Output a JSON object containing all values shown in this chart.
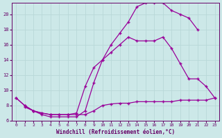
{
  "background_color": "#cce8e8",
  "grid_color": "#aacccc",
  "line_color": "#990099",
  "marker": "+",
  "xlabel": "Windchill (Refroidissement éolien,°C)",
  "xlim": [
    -0.5,
    23.5
  ],
  "ylim": [
    6,
    21.5
  ],
  "yticks": [
    6,
    8,
    10,
    12,
    14,
    16,
    18,
    20
  ],
  "xticks": [
    0,
    1,
    2,
    3,
    4,
    5,
    6,
    7,
    8,
    9,
    10,
    11,
    12,
    13,
    14,
    15,
    16,
    17,
    18,
    19,
    20,
    21,
    22,
    23
  ],
  "line1_x": [
    0,
    1,
    2,
    3,
    4,
    5,
    6,
    7,
    8,
    9,
    10,
    11,
    12,
    13,
    14,
    15,
    16,
    17,
    18,
    19,
    20,
    21
  ],
  "line1_y": [
    9.0,
    8.0,
    7.3,
    6.8,
    6.5,
    6.5,
    6.5,
    6.5,
    7.3,
    11.0,
    14.0,
    16.0,
    17.5,
    19.0,
    21.0,
    21.5,
    21.5,
    21.5,
    20.5,
    20.0,
    19.5,
    18.0
  ],
  "line2_x": [
    1,
    2,
    3,
    4,
    5,
    6,
    7,
    8,
    9,
    10,
    11,
    12,
    13,
    14,
    15,
    16,
    17,
    18,
    19,
    20,
    21,
    22,
    23
  ],
  "line2_y": [
    7.8,
    7.3,
    7.0,
    6.8,
    6.8,
    6.8,
    6.8,
    6.8,
    7.3,
    8.0,
    8.2,
    8.3,
    8.3,
    8.5,
    8.5,
    8.5,
    8.5,
    8.5,
    8.7,
    8.7,
    8.7,
    8.7,
    9.0
  ],
  "line3_x": [
    0,
    1,
    2,
    3,
    4,
    5,
    6,
    7,
    8,
    9,
    10,
    11,
    12,
    13,
    14,
    15,
    16,
    17,
    18,
    19,
    20,
    21,
    22,
    23
  ],
  "line3_y": [
    9.0,
    8.0,
    7.3,
    7.0,
    6.8,
    6.8,
    6.8,
    7.0,
    10.5,
    13.0,
    14.0,
    15.0,
    16.0,
    17.0,
    16.5,
    16.5,
    16.5,
    17.0,
    15.5,
    13.5,
    11.5,
    11.5,
    10.5,
    9.0
  ]
}
